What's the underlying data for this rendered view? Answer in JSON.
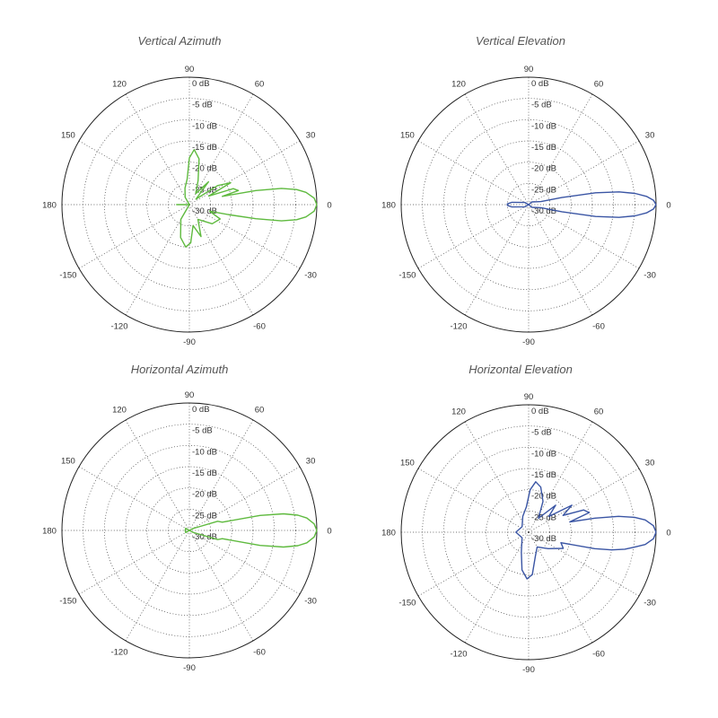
{
  "colors": {
    "green": "#5fba3f",
    "blue": "#3a55a4"
  },
  "ring_labels": [
    "0 dB",
    "-5 dB",
    "-10 dB",
    "-15 dB",
    "-20 dB",
    "-25 dB",
    "-30 dB"
  ],
  "angle_labels": [
    "0",
    "30",
    "60",
    "90",
    "120",
    "150",
    "180",
    "-150",
    "-120",
    "-90",
    "-60",
    "-30"
  ],
  "chart_data": [
    {
      "type": "polar",
      "title": "Vertical Azimuth",
      "color": "green",
      "rmin_db": -30,
      "rmax_db": 0,
      "series": [
        {
          "points_deg_db": [
            [
              0,
              0
            ],
            [
              3,
              -0.6
            ],
            [
              6,
              -2.4
            ],
            [
              8,
              -4.5
            ],
            [
              10,
              -8
            ],
            [
              12,
              -14
            ],
            [
              14,
              -22
            ],
            [
              16,
              -18
            ],
            [
              20,
              -19
            ],
            [
              24,
              -25
            ],
            [
              28,
              -19
            ],
            [
              34,
              -22
            ],
            [
              40,
              -28
            ],
            [
              50,
              -23
            ],
            [
              60,
              -27
            ],
            [
              70,
              -24
            ],
            [
              78,
              -19
            ],
            [
              85,
              -17
            ],
            [
              90,
              -19
            ],
            [
              95,
              -24
            ],
            [
              105,
              -26
            ],
            [
              120,
              -28
            ],
            [
              150,
              -30
            ],
            [
              180,
              -27
            ],
            [
              210,
              -30
            ],
            [
              240,
              -26
            ],
            [
              255,
              -22
            ],
            [
              265,
              -20
            ],
            [
              272,
              -21
            ],
            [
              280,
              -25
            ],
            [
              290,
              -22
            ],
            [
              300,
              -26
            ],
            [
              320,
              -23
            ],
            [
              335,
              -22
            ],
            [
              342,
              -25
            ],
            [
              346,
              -20
            ],
            [
              348,
              -14
            ],
            [
              350,
              -8
            ],
            [
              352,
              -4.5
            ],
            [
              354,
              -2.4
            ],
            [
              357,
              -0.6
            ],
            [
              360,
              0
            ]
          ]
        }
      ]
    },
    {
      "type": "polar",
      "title": "Vertical Elevation",
      "color": "blue",
      "rmin_db": -30,
      "rmax_db": 0,
      "series": [
        {
          "points_deg_db": [
            [
              0,
              0
            ],
            [
              2,
              -0.6
            ],
            [
              4,
              -2.2
            ],
            [
              6,
              -4.8
            ],
            [
              8,
              -8.5
            ],
            [
              10,
              -14
            ],
            [
              12,
              -22
            ],
            [
              14,
              -27
            ],
            [
              20,
              -28
            ],
            [
              40,
              -29
            ],
            [
              90,
              -30
            ],
            [
              150,
              -29
            ],
            [
              172,
              -26
            ],
            [
              178,
              -25
            ],
            [
              180,
              -25
            ],
            [
              182,
              -25
            ],
            [
              188,
              -26
            ],
            [
              210,
              -29
            ],
            [
              270,
              -30
            ],
            [
              320,
              -29
            ],
            [
              340,
              -28
            ],
            [
              346,
              -27
            ],
            [
              348,
              -22
            ],
            [
              350,
              -14
            ],
            [
              352,
              -8.5
            ],
            [
              354,
              -4.8
            ],
            [
              356,
              -2.2
            ],
            [
              358,
              -0.6
            ],
            [
              360,
              0
            ]
          ]
        }
      ]
    },
    {
      "type": "polar",
      "title": "Horizontal Azimuth",
      "color": "green",
      "rmin_db": -30,
      "rmax_db": 0,
      "series": [
        {
          "points_deg_db": [
            [
              0,
              0
            ],
            [
              3,
              -0.6
            ],
            [
              6,
              -2.2
            ],
            [
              8,
              -4.2
            ],
            [
              10,
              -7.5
            ],
            [
              12,
              -13
            ],
            [
              14,
              -22
            ],
            [
              18,
              -23
            ],
            [
              22,
              -28
            ],
            [
              28,
              -29
            ],
            [
              60,
              -30
            ],
            [
              150,
              -29
            ],
            [
              180,
              -29
            ],
            [
              210,
              -29
            ],
            [
              300,
              -30
            ],
            [
              332,
              -29
            ],
            [
              338,
              -28
            ],
            [
              342,
              -23
            ],
            [
              346,
              -22
            ],
            [
              348,
              -13
            ],
            [
              350,
              -7.5
            ],
            [
              352,
              -4.2
            ],
            [
              354,
              -2.2
            ],
            [
              357,
              -0.6
            ],
            [
              360,
              0
            ]
          ]
        }
      ]
    },
    {
      "type": "polar",
      "title": "Horizontal Elevation",
      "color": "blue",
      "rmin_db": -30,
      "rmax_db": 0,
      "series": [
        {
          "points_deg_db": [
            [
              0,
              0
            ],
            [
              3,
              -0.6
            ],
            [
              6,
              -2.4
            ],
            [
              8,
              -4.8
            ],
            [
              10,
              -8.5
            ],
            [
              12,
              -14
            ],
            [
              14,
              -20
            ],
            [
              18,
              -15
            ],
            [
              22,
              -16
            ],
            [
              26,
              -21
            ],
            [
              32,
              -18
            ],
            [
              38,
              -24
            ],
            [
              45,
              -21
            ],
            [
              55,
              -26
            ],
            [
              65,
              -22
            ],
            [
              75,
              -19
            ],
            [
              82,
              -18
            ],
            [
              88,
              -20
            ],
            [
              95,
              -24
            ],
            [
              110,
              -26
            ],
            [
              140,
              -28
            ],
            [
              180,
              -27
            ],
            [
              220,
              -28
            ],
            [
              250,
              -25
            ],
            [
              260,
              -21
            ],
            [
              268,
              -19
            ],
            [
              275,
              -20
            ],
            [
              285,
              -24
            ],
            [
              300,
              -26
            ],
            [
              320,
              -24
            ],
            [
              335,
              -21
            ],
            [
              342,
              -22
            ],
            [
              346,
              -14
            ],
            [
              348,
              -10
            ],
            [
              350,
              -7
            ],
            [
              352,
              -4.8
            ],
            [
              354,
              -2.4
            ],
            [
              357,
              -0.6
            ],
            [
              360,
              0
            ]
          ]
        }
      ]
    }
  ]
}
